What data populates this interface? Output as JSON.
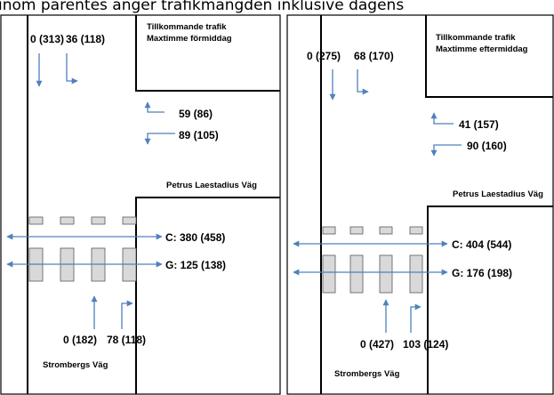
{
  "caption": "inom parentes anger trafikmängden inklusive dagens",
  "colors": {
    "arrow": "#4f81bd",
    "crossing_fill": "#d9d9d9",
    "crossing_stroke": "#595959",
    "road": "#000000"
  },
  "panels": [
    {
      "title_line1": "Tillkommande trafik",
      "title_line2": "Maxtimme förmiddag",
      "street_east": "Petrus Laestadius Väg",
      "street_south": "Strombergs Väg",
      "north_through": "0 (313)",
      "north_right": "36 (118)",
      "east_upper": "59 (86)",
      "east_lower": "89 (105)",
      "crossing_c": "C: 380 (458)",
      "crossing_g": "G: 125 (138)",
      "south_through": "0 (182)",
      "south_right": "78 (118)"
    },
    {
      "title_line1": "Tillkommande trafik",
      "title_line2": "Maxtimme eftermiddag",
      "street_east": "Petrus Laestadius Väg",
      "street_south": "Strombergs Väg",
      "north_through": "0 (275)",
      "north_right": "68 (170)",
      "east_upper": "41 (157)",
      "east_lower": "90 (160)",
      "crossing_c": "C: 404 (544)",
      "crossing_g": "G: 176 (198)",
      "south_through": "0 (427)",
      "south_right": "103 (124)"
    }
  ]
}
